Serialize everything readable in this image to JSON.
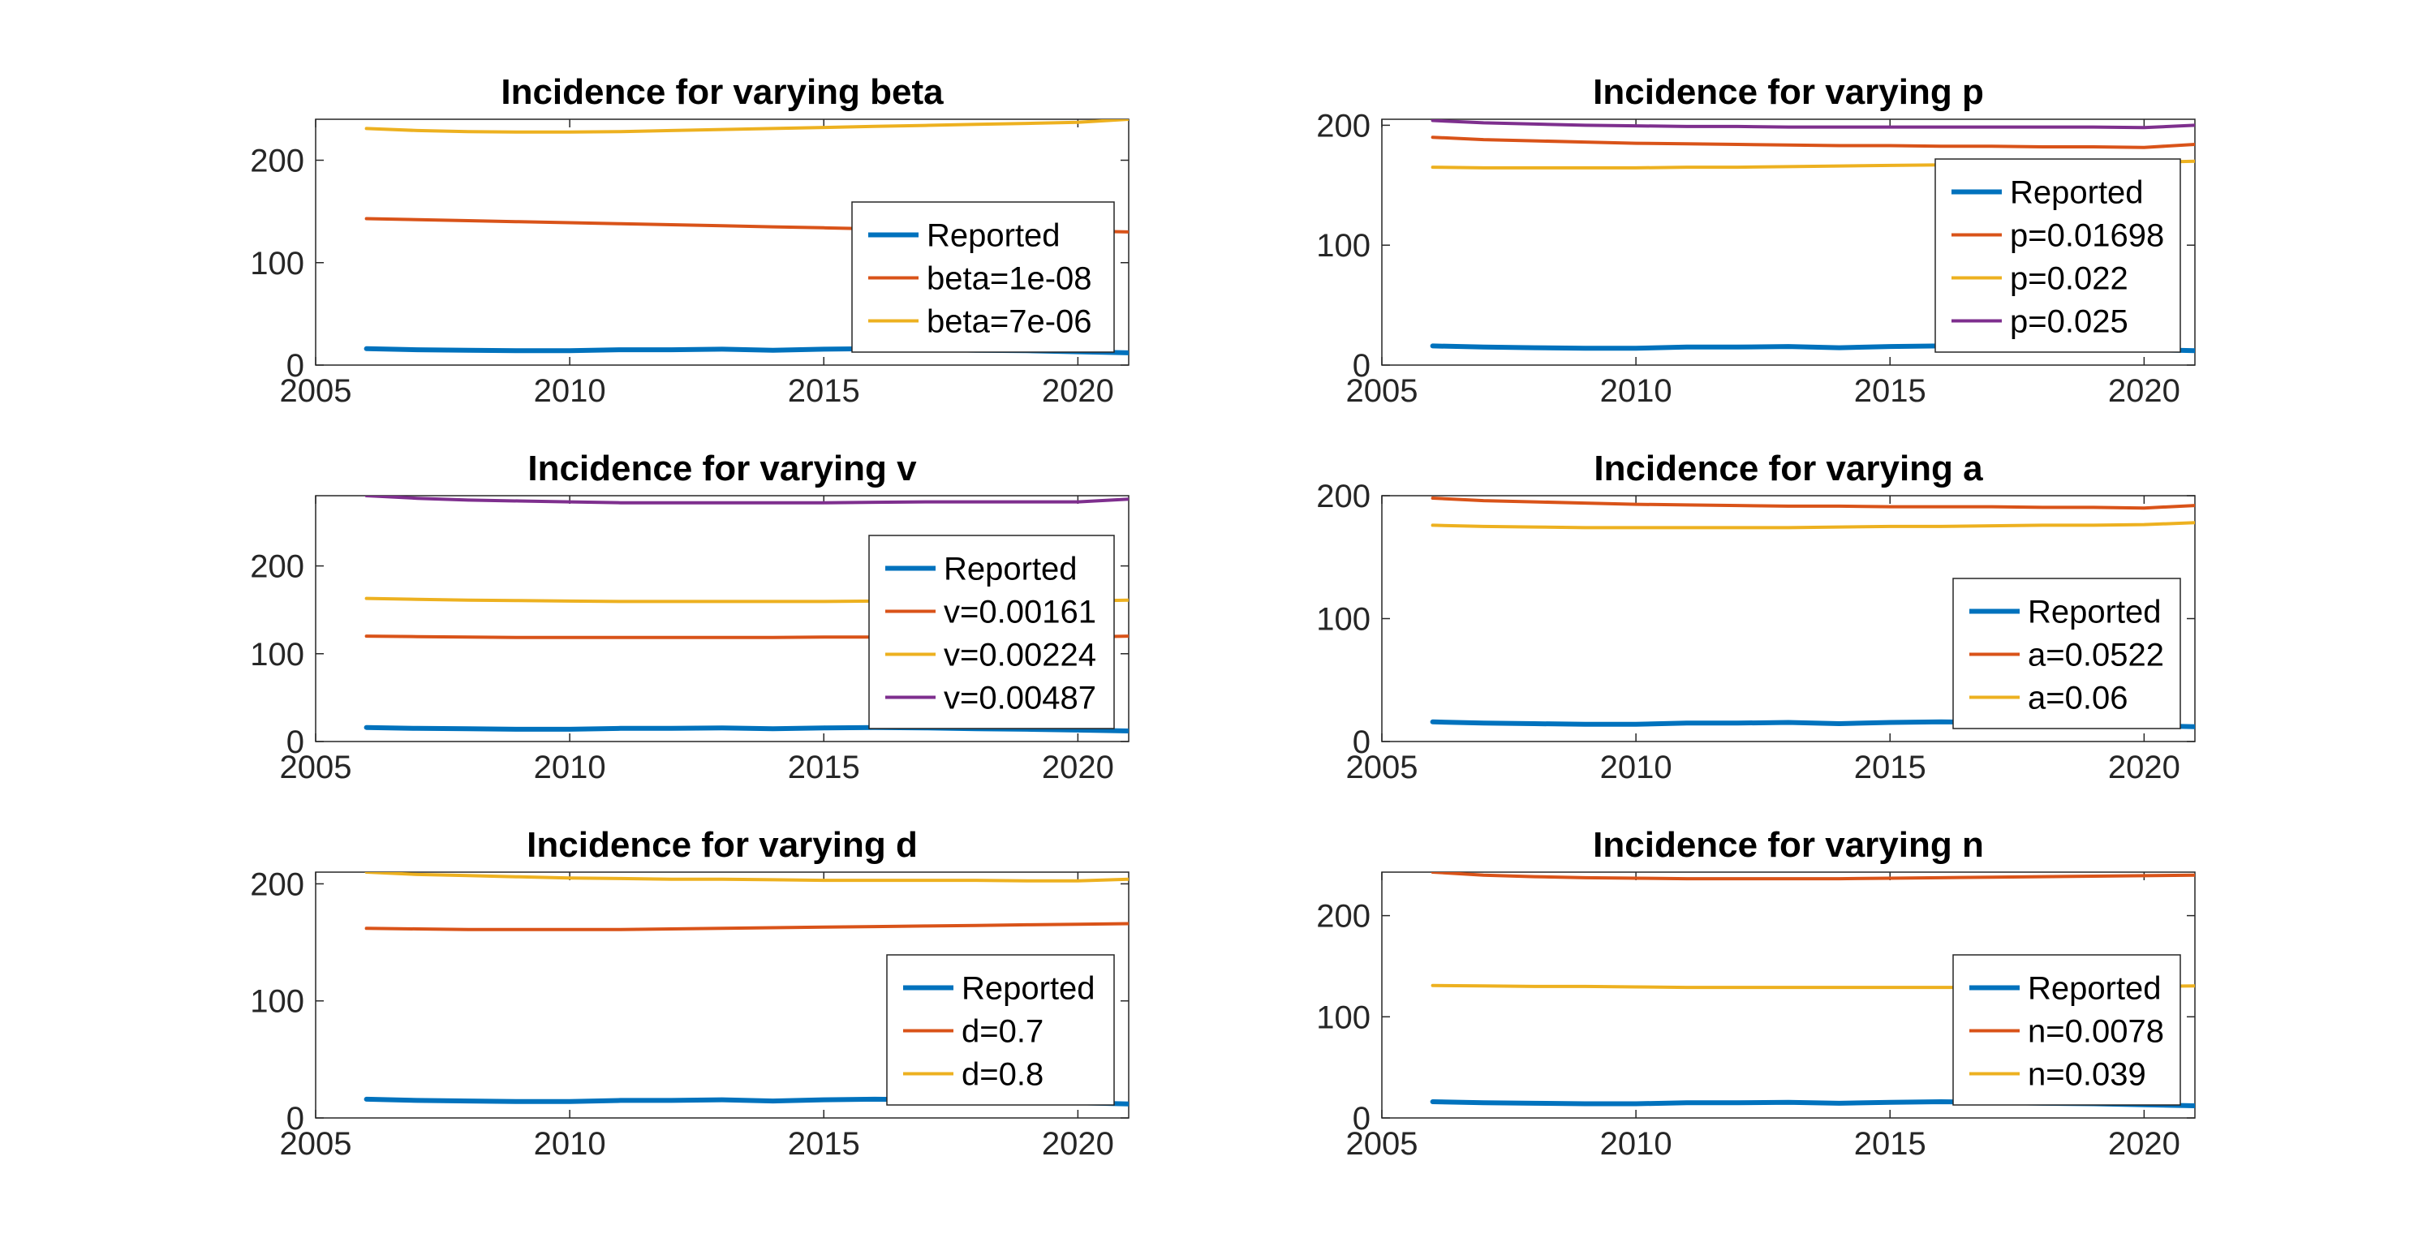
{
  "figure": {
    "colors": {
      "reported": "#0072BD",
      "series1": "#D95319",
      "series2": "#EDB120",
      "series3": "#7E2F8E",
      "axis": "#262626",
      "background": "#ffffff"
    }
  },
  "chart_data": [
    {
      "type": "line",
      "title": "Incidence for varying beta",
      "xlabel": "",
      "ylabel": "",
      "xlim": [
        2005,
        2021
      ],
      "ylim": [
        0,
        240
      ],
      "xticks": [
        2005,
        2010,
        2015,
        2020
      ],
      "yticks": [
        0,
        100,
        200
      ],
      "legend_position": "bottom-right",
      "x": [
        2006,
        2007,
        2008,
        2009,
        2010,
        2011,
        2012,
        2013,
        2014,
        2015,
        2016,
        2017,
        2018,
        2019,
        2020,
        2021
      ],
      "series": [
        {
          "name": "Reported",
          "values": [
            16,
            15,
            14.5,
            14,
            14,
            15,
            15,
            15.5,
            14.5,
            15.5,
            16,
            15.5,
            14.5,
            14,
            13,
            12
          ]
        },
        {
          "name": "beta=1e-08",
          "values": [
            143,
            142,
            141,
            140,
            139,
            138,
            137,
            136,
            135,
            134,
            133,
            133,
            132,
            131,
            131,
            130
          ]
        },
        {
          "name": "beta=7e-06",
          "values": [
            231,
            229,
            228,
            227.5,
            227.5,
            228,
            229,
            230,
            231,
            232,
            233,
            234,
            235,
            236,
            237,
            240
          ]
        }
      ]
    },
    {
      "type": "line",
      "title": "Incidence for varying p",
      "xlabel": "",
      "ylabel": "",
      "xlim": [
        2005,
        2021
      ],
      "ylim": [
        0,
        205
      ],
      "xticks": [
        2005,
        2010,
        2015,
        2020
      ],
      "yticks": [
        0,
        100,
        200
      ],
      "legend_position": "bottom-right",
      "x": [
        2006,
        2007,
        2008,
        2009,
        2010,
        2011,
        2012,
        2013,
        2014,
        2015,
        2016,
        2017,
        2018,
        2019,
        2020,
        2021
      ],
      "series": [
        {
          "name": "Reported",
          "values": [
            16,
            15,
            14.5,
            14,
            14,
            15,
            15,
            15.5,
            14.5,
            15.5,
            16,
            15.5,
            14.5,
            14,
            13,
            12
          ]
        },
        {
          "name": "p=0.01698",
          "values": [
            190,
            188,
            187,
            186,
            185,
            184.5,
            184,
            183.5,
            183,
            183,
            182.5,
            182.5,
            182,
            182,
            181.5,
            184
          ]
        },
        {
          "name": "p=0.022",
          "values": [
            165,
            164.5,
            164.5,
            164.5,
            164.5,
            165,
            165,
            165.5,
            166,
            166.5,
            167,
            167.5,
            168,
            168.5,
            169,
            170
          ]
        },
        {
          "name": "p=0.025",
          "values": [
            204,
            202,
            201,
            200,
            199.5,
            199,
            199,
            198.5,
            198.5,
            198.5,
            198.5,
            198.5,
            198.5,
            198.5,
            198,
            200
          ]
        }
      ]
    },
    {
      "type": "line",
      "title": "Incidence for varying v",
      "xlabel": "",
      "ylabel": "",
      "xlim": [
        2005,
        2021
      ],
      "ylim": [
        0,
        280
      ],
      "xticks": [
        2005,
        2010,
        2015,
        2020
      ],
      "yticks": [
        0,
        100,
        200
      ],
      "legend_position": "bottom-right",
      "x": [
        2006,
        2007,
        2008,
        2009,
        2010,
        2011,
        2012,
        2013,
        2014,
        2015,
        2016,
        2017,
        2018,
        2019,
        2020,
        2021
      ],
      "series": [
        {
          "name": "Reported",
          "values": [
            16,
            15,
            14.5,
            14,
            14,
            15,
            15,
            15.5,
            14.5,
            15.5,
            16,
            15.5,
            14.5,
            14,
            13,
            12
          ]
        },
        {
          "name": "v=0.00161",
          "values": [
            120,
            119.5,
            119,
            118.5,
            118.5,
            118.5,
            118.5,
            118.5,
            118.5,
            119,
            119,
            119,
            119,
            119,
            119,
            120
          ]
        },
        {
          "name": "v=0.00224",
          "values": [
            163,
            162,
            161,
            160.5,
            160,
            159.5,
            159.5,
            159.5,
            159.5,
            159.5,
            160,
            160,
            160,
            160,
            160,
            161
          ]
        },
        {
          "name": "v=0.00487",
          "values": [
            280,
            277,
            275,
            274,
            273,
            272,
            272,
            272,
            272,
            272,
            272.5,
            273,
            273,
            273,
            273,
            276
          ]
        }
      ]
    },
    {
      "type": "line",
      "title": "Incidence for varying a",
      "xlabel": "",
      "ylabel": "",
      "xlim": [
        2005,
        2021
      ],
      "ylim": [
        0,
        200
      ],
      "xticks": [
        2005,
        2010,
        2015,
        2020
      ],
      "yticks": [
        0,
        100,
        200
      ],
      "legend_position": "bottom-right",
      "x": [
        2006,
        2007,
        2008,
        2009,
        2010,
        2011,
        2012,
        2013,
        2014,
        2015,
        2016,
        2017,
        2018,
        2019,
        2020,
        2021
      ],
      "series": [
        {
          "name": "Reported",
          "values": [
            16,
            15,
            14.5,
            14,
            14,
            15,
            15,
            15.5,
            14.5,
            15.5,
            16,
            15.5,
            14.5,
            14,
            13,
            12
          ]
        },
        {
          "name": "a=0.0522",
          "values": [
            198,
            196,
            195,
            194,
            193,
            192.5,
            192,
            191.5,
            191.5,
            191,
            191,
            191,
            190.5,
            190.5,
            190,
            192
          ]
        },
        {
          "name": "a=0.06",
          "values": [
            176,
            175,
            174.5,
            174,
            174,
            174,
            174,
            174,
            174.5,
            175,
            175,
            175.5,
            176,
            176,
            176.5,
            178
          ]
        }
      ]
    },
    {
      "type": "line",
      "title": "Incidence for varying d",
      "xlabel": "",
      "ylabel": "",
      "xlim": [
        2005,
        2021
      ],
      "ylim": [
        0,
        210
      ],
      "xticks": [
        2005,
        2010,
        2015,
        2020
      ],
      "yticks": [
        0,
        100,
        200
      ],
      "legend_position": "bottom-right",
      "x": [
        2006,
        2007,
        2008,
        2009,
        2010,
        2011,
        2012,
        2013,
        2014,
        2015,
        2016,
        2017,
        2018,
        2019,
        2020,
        2021
      ],
      "series": [
        {
          "name": "Reported",
          "values": [
            16,
            15,
            14.5,
            14,
            14,
            15,
            15,
            15.5,
            14.5,
            15.5,
            16,
            15.5,
            14.5,
            14,
            13,
            12
          ]
        },
        {
          "name": "d=0.7",
          "values": [
            162,
            161.5,
            161,
            161,
            161,
            161,
            161.5,
            162,
            162.5,
            163,
            163.5,
            164,
            164.5,
            165,
            165.5,
            166
          ]
        },
        {
          "name": "d=0.8",
          "values": [
            210,
            208,
            207,
            206,
            205,
            204.5,
            204,
            204,
            203.5,
            203,
            203,
            203,
            203,
            202.5,
            202.5,
            204
          ]
        }
      ]
    },
    {
      "type": "line",
      "title": "Incidence for varying n",
      "xlabel": "",
      "ylabel": "",
      "xlim": [
        2005,
        2021
      ],
      "ylim": [
        0,
        243
      ],
      "xticks": [
        2005,
        2010,
        2015,
        2020
      ],
      "yticks": [
        0,
        100,
        200
      ],
      "legend_position": "bottom-right",
      "x": [
        2006,
        2007,
        2008,
        2009,
        2010,
        2011,
        2012,
        2013,
        2014,
        2015,
        2016,
        2017,
        2018,
        2019,
        2020,
        2021
      ],
      "series": [
        {
          "name": "Reported",
          "values": [
            16,
            15,
            14.5,
            14,
            14,
            15,
            15,
            15.5,
            14.5,
            15.5,
            16,
            15.5,
            14.5,
            14,
            13,
            12
          ]
        },
        {
          "name": "n=0.0078",
          "values": [
            243,
            240,
            238.5,
            237.5,
            237,
            236.5,
            236.5,
            236.5,
            236.5,
            237,
            237.5,
            238,
            238.5,
            239,
            239.5,
            240
          ]
        },
        {
          "name": "n=0.039",
          "values": [
            131,
            130.5,
            130,
            130,
            129.5,
            129,
            129,
            129,
            129,
            129,
            129,
            129,
            129,
            129.5,
            130,
            130.5
          ]
        }
      ]
    }
  ]
}
